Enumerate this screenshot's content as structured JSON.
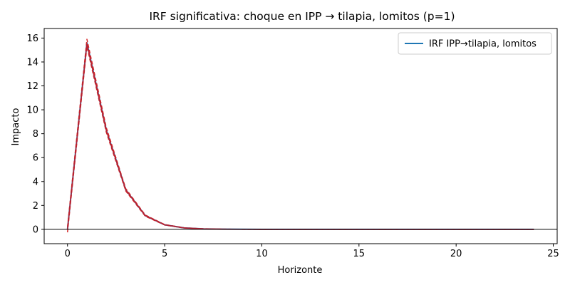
{
  "chart_data": {
    "type": "line",
    "title": "IRF significativa: choque en IPP → tilapia, lomitos (p=1)",
    "xlabel": "Horizonte",
    "ylabel": "Impacto",
    "xlim": [
      -1.2,
      25.2
    ],
    "ylim": [
      -1.2,
      16.8
    ],
    "xticks": [
      0,
      5,
      10,
      15,
      20,
      25
    ],
    "yticks": [
      0,
      2,
      4,
      6,
      8,
      10,
      12,
      14,
      16
    ],
    "grid": false,
    "zero_line": true,
    "legend_position": "top-right",
    "x": [
      0,
      1,
      2,
      3,
      4,
      5,
      6,
      7,
      8,
      9,
      10,
      11,
      12,
      13,
      14,
      15,
      16,
      17,
      18,
      19,
      20,
      21,
      22,
      23,
      24
    ],
    "series": [
      {
        "name": "IRF IPP→tilapia, lomitos",
        "role": "irf",
        "color": "#1f77b4",
        "style": "solid",
        "values": [
          0,
          15.6,
          8.3,
          3.3,
          1.15,
          0.38,
          0.12,
          0.04,
          0.013,
          0.004,
          0.001,
          0,
          0,
          0,
          0,
          0,
          0,
          0,
          0,
          0,
          0,
          0,
          0,
          0,
          0
        ]
      },
      {
        "name": "",
        "role": "upper-band",
        "color": "#d62728",
        "style": "dashed",
        "values": [
          0.2,
          15.9,
          8.5,
          3.4,
          1.2,
          0.4,
          0.13,
          0.045,
          0.015,
          0.005,
          0.002,
          0.001,
          0,
          0,
          0,
          0,
          0,
          0,
          0,
          0,
          0,
          0,
          0,
          0,
          0
        ]
      },
      {
        "name": "",
        "role": "lower-band",
        "color": "#d62728",
        "style": "dashed",
        "values": [
          -0.25,
          15.3,
          8.1,
          3.2,
          1.1,
          0.36,
          0.11,
          0.035,
          0.011,
          0.003,
          0.001,
          0,
          0,
          0,
          0,
          0,
          0,
          0,
          0,
          0,
          0,
          0,
          0,
          0,
          0
        ]
      },
      {
        "name": "",
        "role": "median",
        "color": "#b22234",
        "style": "solid",
        "values": [
          0,
          15.5,
          8.25,
          3.3,
          1.15,
          0.38,
          0.12,
          0.04,
          0.013,
          0.004,
          0.001,
          0,
          0,
          0,
          0,
          0,
          0,
          0,
          0,
          0,
          0,
          0,
          0,
          0,
          0
        ]
      }
    ]
  }
}
